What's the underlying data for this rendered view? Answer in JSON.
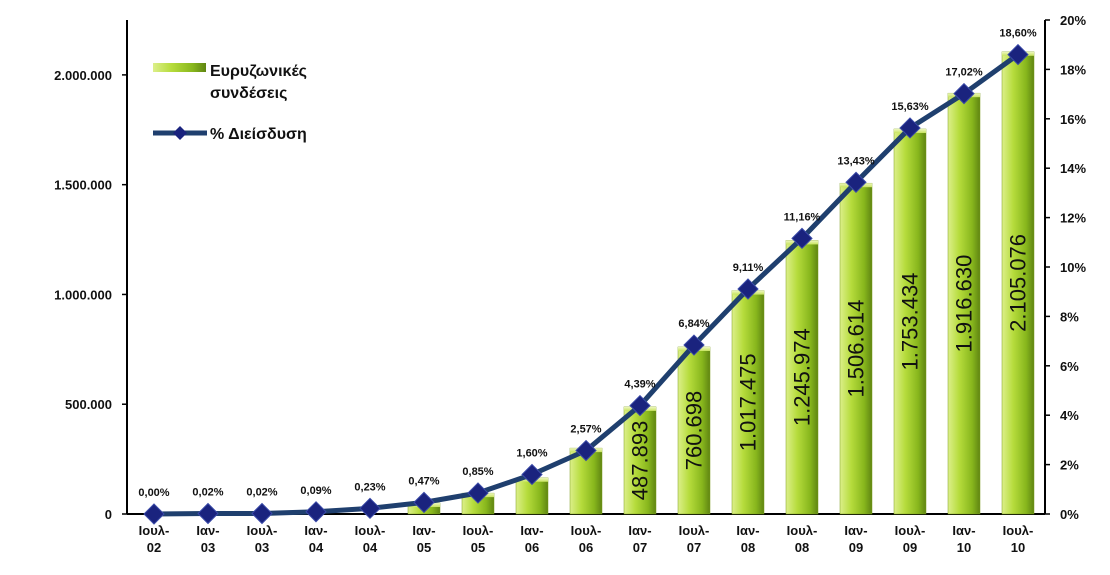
{
  "chart_data": {
    "type": "bar",
    "categories": [
      "Ιουλ-\n02",
      "Ιαν-\n03",
      "Ιουλ-\n03",
      "Ιαν-\n04",
      "Ιουλ-\n04",
      "Ιαν-\n05",
      "Ιουλ-\n05",
      "Ιαν-\n06",
      "Ιουλ-\n06",
      "Ιαν-\n07",
      "Ιουλ-\n07",
      "Ιαν-\n08",
      "Ιουλ-\n08",
      "Ιαν-\n09",
      "Ιουλ-\n09",
      "Ιαν-\n10",
      "Ιουλ-\n10"
    ],
    "series": [
      {
        "name": "Ευρυζωνικές συνδέσεις",
        "type": "bar",
        "axis": "left",
        "color": "#9acd32",
        "values": [
          0,
          0,
          0,
          0,
          0,
          50000,
          95000,
          165000,
          300000,
          487893,
          760698,
          1017475,
          1245974,
          1506614,
          1753434,
          1916630,
          2105076
        ],
        "data_labels": [
          "",
          "",
          "",
          "",
          "",
          "",
          "",
          "",
          "",
          "487.893",
          "760.698",
          "1.017.475",
          "1.245.974",
          "1.506.614",
          "1.753.434",
          "1.916.630",
          "2.105.076"
        ]
      },
      {
        "name": "% Διείσδυση",
        "type": "line",
        "axis": "right",
        "color": "#1f3f6e",
        "marker_color": "#1a237e",
        "values": [
          0.0,
          0.02,
          0.02,
          0.09,
          0.23,
          0.47,
          0.85,
          1.6,
          2.57,
          4.39,
          6.84,
          9.11,
          11.16,
          13.43,
          15.63,
          17.02,
          18.6
        ],
        "data_labels": [
          "0,00%",
          "0,02%",
          "0,02%",
          "0,09%",
          "0,23%",
          "0,47%",
          "0,85%",
          "1,60%",
          "2,57%",
          "4,39%",
          "6,84%",
          "9,11%",
          "11,16%",
          "13,43%",
          "15,63%",
          "17,02%",
          "18,60%"
        ]
      }
    ],
    "left_axis": {
      "ylim": [
        0,
        2250000
      ],
      "ticks": [
        0,
        500000,
        1000000,
        1500000,
        2000000
      ],
      "tick_labels": [
        "0",
        "500.000",
        "1.000.000",
        "1.500.000",
        "2.000.000"
      ]
    },
    "right_axis": {
      "ylim": [
        0,
        20
      ],
      "ticks": [
        0,
        2,
        4,
        6,
        8,
        10,
        12,
        14,
        16,
        18,
        20
      ],
      "tick_labels": [
        "0%",
        "2%",
        "4%",
        "6%",
        "8%",
        "10%",
        "12%",
        "14%",
        "16%",
        "18%",
        "20%"
      ]
    },
    "legend": {
      "placement": "top-left",
      "bar_label_lines": [
        "Ευρυζωνικές",
        "συνδέσεις"
      ],
      "line_label": "% Διείσδυση"
    },
    "grid": false
  }
}
